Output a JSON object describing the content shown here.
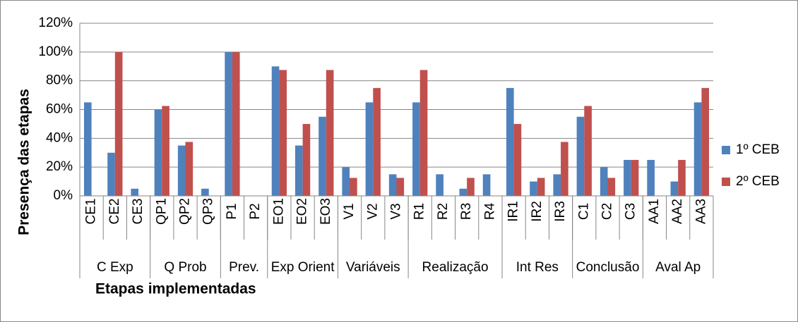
{
  "chart_data": {
    "type": "bar",
    "y_axis_label": "Presença das etapas",
    "x_axis_label": "Etapas implementadas",
    "groups": [
      {
        "name": "C Exp",
        "categories": [
          "CE1",
          "CE2",
          "CE3"
        ]
      },
      {
        "name": "Q Prob",
        "categories": [
          "QP1",
          "QP2",
          "QP3"
        ]
      },
      {
        "name": "Prev.",
        "categories": [
          "P1",
          "P2"
        ]
      },
      {
        "name": "Exp Orient",
        "categories": [
          "EO1",
          "EO2",
          "EO3"
        ]
      },
      {
        "name": "Variáveis",
        "categories": [
          "V1",
          "V2",
          "V3"
        ]
      },
      {
        "name": "Realização",
        "categories": [
          "R1",
          "R2",
          "R3",
          "R4"
        ]
      },
      {
        "name": "Int Res",
        "categories": [
          "IR1",
          "IR2",
          "IR3"
        ]
      },
      {
        "name": "Conclusão",
        "categories": [
          "C1",
          "C2",
          "C3"
        ]
      },
      {
        "name": "Aval Ap",
        "categories": [
          "AA1",
          "AA2",
          "AA3"
        ]
      }
    ],
    "series": [
      {
        "name": "1º CEB",
        "color": "#4f81bd",
        "values": [
          65,
          30,
          5,
          60,
          35,
          5,
          100,
          0,
          90,
          35,
          55,
          20,
          65,
          15,
          65,
          15,
          5,
          15,
          75,
          10,
          15,
          55,
          20,
          25,
          25,
          10,
          65
        ]
      },
      {
        "name": "2º CEB",
        "color": "#c0504d",
        "values": [
          0,
          100,
          0,
          62.5,
          37.5,
          0,
          100,
          0,
          87.5,
          50,
          87.5,
          12.5,
          75,
          12.5,
          87.5,
          0,
          12.5,
          0,
          50,
          12.5,
          37.5,
          62.5,
          12.5,
          25,
          0,
          25,
          75
        ]
      }
    ],
    "ylim": [
      0,
      120
    ],
    "yticks": [
      {
        "value": 0,
        "label": "0%"
      },
      {
        "value": 20,
        "label": "20%"
      },
      {
        "value": 40,
        "label": "40%"
      },
      {
        "value": 60,
        "label": "60%"
      },
      {
        "value": 80,
        "label": "80%"
      },
      {
        "value": 100,
        "label": "100%"
      },
      {
        "value": 120,
        "label": "120%"
      }
    ],
    "grid": true,
    "legend": "right"
  }
}
